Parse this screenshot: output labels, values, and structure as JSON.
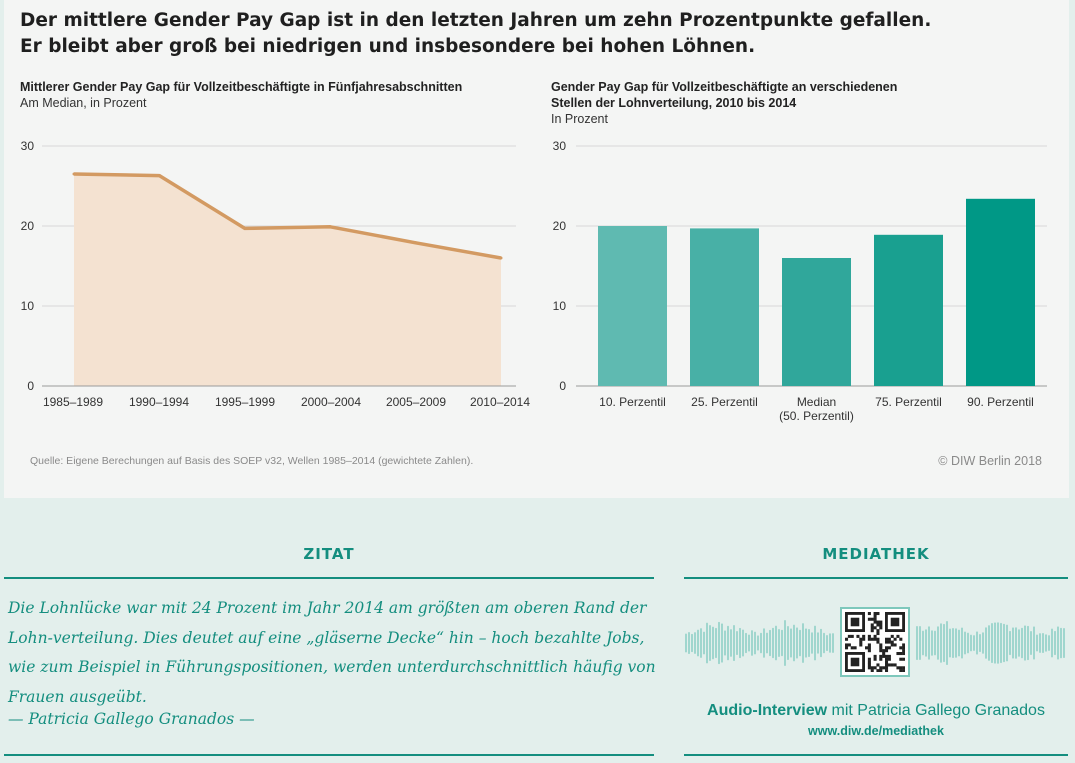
{
  "headline": {
    "line1": "Der mittlere Gender Pay Gap ist in den letzten Jahren um zehn Prozentpunkte gefallen.",
    "line2": "Er bleibt aber groß bei niedrigen und insbesondere bei hohen Löhnen."
  },
  "left_chart": {
    "title": "Mittlerer Gender Pay Gap für Vollzeitbeschäftigte in Fünfjahresabschnitten",
    "note": "Am Median, in Prozent"
  },
  "right_chart": {
    "title_line1": "Gender Pay Gap für Vollzeitbeschäftigte an verschiedenen",
    "title_line2": "Stellen der Lohnverteilung, 2010 bis 2014",
    "note": "In Prozent"
  },
  "chart_data": [
    {
      "type": "area",
      "title": "Mittlerer Gender Pay Gap für Vollzeitbeschäftigte in Fünfjahresabschnitten",
      "subtitle": "Am Median, in Prozent",
      "categories": [
        "1985–1989",
        "1990–1994",
        "1995–1999",
        "2000–2004",
        "2005–2009",
        "2010–2014"
      ],
      "values": [
        26.5,
        26.3,
        19.7,
        19.9,
        17.9,
        16.0
      ],
      "yticks": [
        0,
        10,
        20,
        30
      ],
      "ylim": [
        0,
        30
      ],
      "grid": true,
      "colors": {
        "line": "#d39a62",
        "fill": "#f4e2d1"
      }
    },
    {
      "type": "bar",
      "title": "Gender Pay Gap für Vollzeitbeschäftigte an verschiedenen Stellen der Lohnverteilung, 2010 bis 2014",
      "subtitle": "In Prozent",
      "categories": [
        [
          "10. Perzentil"
        ],
        [
          "25. Perzentil"
        ],
        [
          "Median",
          "(50. Perzentil)"
        ],
        [
          "75. Perzentil"
        ],
        [
          "90. Perzentil"
        ]
      ],
      "values": [
        20.0,
        19.7,
        16.0,
        18.9,
        23.4
      ],
      "yticks": [
        0,
        10,
        20,
        30
      ],
      "ylim": [
        0,
        30
      ],
      "grid": true,
      "colors": [
        "#5fbab1",
        "#48b0a6",
        "#30a79b",
        "#19a090",
        "#009886"
      ]
    }
  ],
  "footer": {
    "source": "Quelle: Eigene Berechungen auf Basis des SOEP v32, Wellen 1985–2014 (gewichtete Zahlen).",
    "copyright": "© DIW Berlin 2018"
  },
  "zitat": {
    "heading": "ZITAT",
    "text": "Die Lohnlücke war mit 24 Prozent im Jahr 2014 am größten am oberen Rand der Lohn-verteilung.  Dies deutet auf eine „gläserne Decke“ hin – hoch bezahlte Jobs, wie zum Beispiel in Führungspositionen, werden unterdurchschnittlich häufig von Frauen ausgeübt.",
    "author": "— Patricia Gallego Granados —"
  },
  "mediathek": {
    "heading": "MEDIATHEK",
    "audio_bold": "Audio-Interview",
    "audio_rest": " mit Patricia Gallego Granados",
    "link": "www.diw.de/mediathek",
    "accent": "#148e7f"
  }
}
